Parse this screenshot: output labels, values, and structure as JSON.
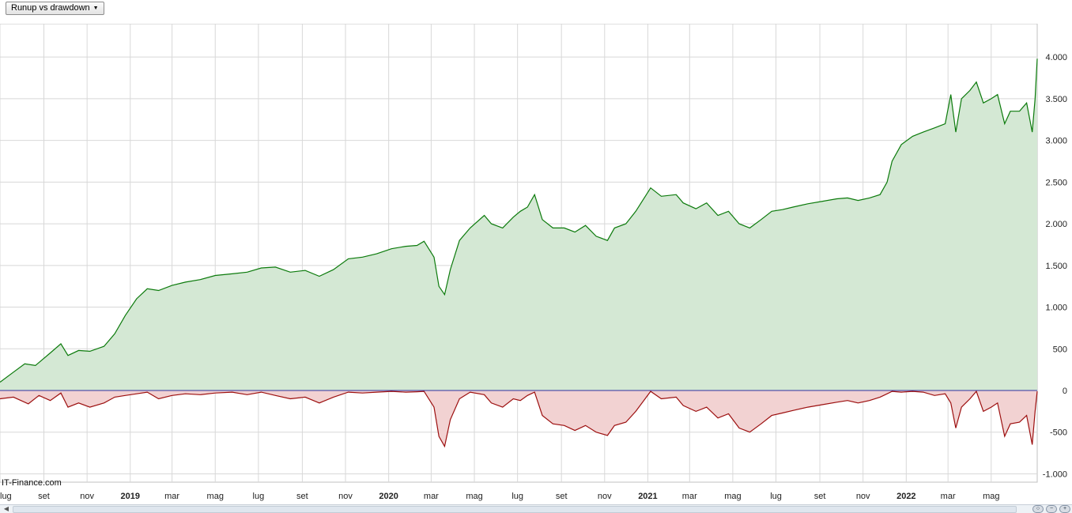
{
  "selector": {
    "label": "Runup vs drawdown",
    "caret": "▼"
  },
  "watermark": "IT-Finance.com",
  "colors": {
    "runup_line": "#0b7a0b",
    "runup_fill": "#d4e8d4",
    "drawdown_line": "#9c0f0f",
    "drawdown_fill": "#f2d2d2",
    "zero_line": "#3030a0",
    "grid": "#d8d8d8"
  },
  "chart_data": {
    "type": "area",
    "title": "",
    "xlabel": "",
    "ylabel": "",
    "x_range": [
      "2018-07-01",
      "2022-07-05"
    ],
    "ylim": [
      -1100,
      4400
    ],
    "y_ticks": [
      {
        "value": 4000,
        "label": "4.000"
      },
      {
        "value": 3500,
        "label": "3.500"
      },
      {
        "value": 3000,
        "label": "3.000"
      },
      {
        "value": 2500,
        "label": "2.500"
      },
      {
        "value": 2000,
        "label": "2.000"
      },
      {
        "value": 1500,
        "label": "1.500"
      },
      {
        "value": 1000,
        "label": "1.000"
      },
      {
        "value": 500,
        "label": "500"
      },
      {
        "value": 0,
        "label": "0"
      },
      {
        "value": -500,
        "label": "-500"
      },
      {
        "value": -1000,
        "label": "-1.000"
      }
    ],
    "x_ticks": [
      {
        "date": "2018-07-01",
        "label": "lug",
        "major": false
      },
      {
        "date": "2018-09-01",
        "label": "set",
        "major": false
      },
      {
        "date": "2018-11-01",
        "label": "nov",
        "major": false
      },
      {
        "date": "2019-01-01",
        "label": "2019",
        "major": true
      },
      {
        "date": "2019-03-01",
        "label": "mar",
        "major": false
      },
      {
        "date": "2019-05-01",
        "label": "mag",
        "major": false
      },
      {
        "date": "2019-07-01",
        "label": "lug",
        "major": false
      },
      {
        "date": "2019-09-01",
        "label": "set",
        "major": false
      },
      {
        "date": "2019-11-01",
        "label": "nov",
        "major": false
      },
      {
        "date": "2020-01-01",
        "label": "2020",
        "major": true
      },
      {
        "date": "2020-03-01",
        "label": "mar",
        "major": false
      },
      {
        "date": "2020-05-01",
        "label": "mag",
        "major": false
      },
      {
        "date": "2020-07-01",
        "label": "lug",
        "major": false
      },
      {
        "date": "2020-09-01",
        "label": "set",
        "major": false
      },
      {
        "date": "2020-11-01",
        "label": "nov",
        "major": false
      },
      {
        "date": "2021-01-01",
        "label": "2021",
        "major": true
      },
      {
        "date": "2021-03-01",
        "label": "mar",
        "major": false
      },
      {
        "date": "2021-05-01",
        "label": "mag",
        "major": false
      },
      {
        "date": "2021-07-01",
        "label": "lug",
        "major": false
      },
      {
        "date": "2021-09-01",
        "label": "set",
        "major": false
      },
      {
        "date": "2021-11-01",
        "label": "nov",
        "major": false
      },
      {
        "date": "2022-01-01",
        "label": "2022",
        "major": true
      },
      {
        "date": "2022-03-01",
        "label": "mar",
        "major": false
      },
      {
        "date": "2022-05-01",
        "label": "mag",
        "major": false
      }
    ],
    "series": [
      {
        "key": "runup",
        "points": [
          [
            "2018-07-01",
            100
          ],
          [
            "2018-07-20",
            220
          ],
          [
            "2018-08-05",
            320
          ],
          [
            "2018-08-20",
            300
          ],
          [
            "2018-09-10",
            450
          ],
          [
            "2018-09-25",
            560
          ],
          [
            "2018-10-05",
            420
          ],
          [
            "2018-10-20",
            480
          ],
          [
            "2018-11-05",
            470
          ],
          [
            "2018-11-25",
            530
          ],
          [
            "2018-12-10",
            680
          ],
          [
            "2018-12-25",
            900
          ],
          [
            "2019-01-10",
            1100
          ],
          [
            "2019-01-25",
            1220
          ],
          [
            "2019-02-10",
            1200
          ],
          [
            "2019-03-01",
            1260
          ],
          [
            "2019-03-20",
            1300
          ],
          [
            "2019-04-10",
            1330
          ],
          [
            "2019-05-01",
            1380
          ],
          [
            "2019-05-25",
            1400
          ],
          [
            "2019-06-15",
            1420
          ],
          [
            "2019-07-05",
            1470
          ],
          [
            "2019-07-25",
            1480
          ],
          [
            "2019-08-15",
            1420
          ],
          [
            "2019-09-05",
            1440
          ],
          [
            "2019-09-25",
            1370
          ],
          [
            "2019-10-15",
            1450
          ],
          [
            "2019-11-05",
            1580
          ],
          [
            "2019-11-25",
            1600
          ],
          [
            "2019-12-15",
            1640
          ],
          [
            "2020-01-05",
            1700
          ],
          [
            "2020-01-25",
            1730
          ],
          [
            "2020-02-10",
            1740
          ],
          [
            "2020-02-20",
            1790
          ],
          [
            "2020-03-05",
            1600
          ],
          [
            "2020-03-12",
            1250
          ],
          [
            "2020-03-20",
            1150
          ],
          [
            "2020-03-28",
            1450
          ],
          [
            "2020-04-10",
            1800
          ],
          [
            "2020-04-25",
            1950
          ],
          [
            "2020-05-15",
            2100
          ],
          [
            "2020-05-25",
            2000
          ],
          [
            "2020-06-10",
            1950
          ],
          [
            "2020-06-25",
            2080
          ],
          [
            "2020-07-05",
            2150
          ],
          [
            "2020-07-15",
            2200
          ],
          [
            "2020-07-25",
            2350
          ],
          [
            "2020-08-05",
            2050
          ],
          [
            "2020-08-20",
            1950
          ],
          [
            "2020-09-05",
            1950
          ],
          [
            "2020-09-20",
            1900
          ],
          [
            "2020-10-05",
            1980
          ],
          [
            "2020-10-20",
            1850
          ],
          [
            "2020-11-05",
            1800
          ],
          [
            "2020-11-15",
            1950
          ],
          [
            "2020-12-01",
            2000
          ],
          [
            "2020-12-15",
            2150
          ],
          [
            "2021-01-05",
            2430
          ],
          [
            "2021-01-20",
            2330
          ],
          [
            "2021-02-10",
            2350
          ],
          [
            "2021-02-20",
            2250
          ],
          [
            "2021-03-10",
            2180
          ],
          [
            "2021-03-25",
            2250
          ],
          [
            "2021-04-10",
            2100
          ],
          [
            "2021-04-25",
            2150
          ],
          [
            "2021-05-10",
            2000
          ],
          [
            "2021-05-25",
            1950
          ],
          [
            "2021-06-10",
            2050
          ],
          [
            "2021-06-25",
            2150
          ],
          [
            "2021-07-10",
            2170
          ],
          [
            "2021-07-25",
            2200
          ],
          [
            "2021-08-15",
            2240
          ],
          [
            "2021-09-05",
            2270
          ],
          [
            "2021-09-25",
            2300
          ],
          [
            "2021-10-10",
            2310
          ],
          [
            "2021-10-25",
            2280
          ],
          [
            "2021-11-10",
            2310
          ],
          [
            "2021-11-25",
            2350
          ],
          [
            "2021-12-05",
            2500
          ],
          [
            "2021-12-12",
            2750
          ],
          [
            "2021-12-25",
            2950
          ],
          [
            "2022-01-10",
            3050
          ],
          [
            "2022-01-25",
            3100
          ],
          [
            "2022-02-10",
            3150
          ],
          [
            "2022-02-25",
            3200
          ],
          [
            "2022-03-05",
            3550
          ],
          [
            "2022-03-12",
            3100
          ],
          [
            "2022-03-20",
            3500
          ],
          [
            "2022-04-01",
            3600
          ],
          [
            "2022-04-10",
            3700
          ],
          [
            "2022-04-20",
            3450
          ],
          [
            "2022-05-01",
            3500
          ],
          [
            "2022-05-10",
            3550
          ],
          [
            "2022-05-20",
            3200
          ],
          [
            "2022-05-28",
            3350
          ],
          [
            "2022-06-10",
            3350
          ],
          [
            "2022-06-20",
            3450
          ],
          [
            "2022-06-28",
            3100
          ],
          [
            "2022-07-02",
            3500
          ],
          [
            "2022-07-05",
            3980
          ]
        ]
      },
      {
        "key": "drawdown",
        "points": [
          [
            "2018-07-01",
            -100
          ],
          [
            "2018-07-20",
            -80
          ],
          [
            "2018-08-10",
            -160
          ],
          [
            "2018-08-25",
            -60
          ],
          [
            "2018-09-10",
            -120
          ],
          [
            "2018-09-25",
            -30
          ],
          [
            "2018-10-05",
            -200
          ],
          [
            "2018-10-20",
            -150
          ],
          [
            "2018-11-05",
            -200
          ],
          [
            "2018-11-25",
            -150
          ],
          [
            "2018-12-10",
            -80
          ],
          [
            "2018-12-25",
            -60
          ],
          [
            "2019-01-10",
            -40
          ],
          [
            "2019-01-25",
            -20
          ],
          [
            "2019-02-10",
            -100
          ],
          [
            "2019-03-01",
            -60
          ],
          [
            "2019-03-20",
            -40
          ],
          [
            "2019-04-10",
            -50
          ],
          [
            "2019-05-01",
            -30
          ],
          [
            "2019-05-25",
            -20
          ],
          [
            "2019-06-15",
            -50
          ],
          [
            "2019-07-05",
            -20
          ],
          [
            "2019-07-25",
            -60
          ],
          [
            "2019-08-15",
            -100
          ],
          [
            "2019-09-05",
            -80
          ],
          [
            "2019-09-25",
            -150
          ],
          [
            "2019-10-15",
            -80
          ],
          [
            "2019-11-05",
            -20
          ],
          [
            "2019-11-25",
            -30
          ],
          [
            "2019-12-15",
            -20
          ],
          [
            "2020-01-05",
            -10
          ],
          [
            "2020-01-25",
            -20
          ],
          [
            "2020-02-10",
            -15
          ],
          [
            "2020-02-20",
            -10
          ],
          [
            "2020-03-05",
            -200
          ],
          [
            "2020-03-12",
            -550
          ],
          [
            "2020-03-20",
            -670
          ],
          [
            "2020-03-28",
            -350
          ],
          [
            "2020-04-10",
            -100
          ],
          [
            "2020-04-25",
            -20
          ],
          [
            "2020-05-15",
            -50
          ],
          [
            "2020-05-25",
            -150
          ],
          [
            "2020-06-10",
            -200
          ],
          [
            "2020-06-25",
            -100
          ],
          [
            "2020-07-05",
            -120
          ],
          [
            "2020-07-15",
            -60
          ],
          [
            "2020-07-25",
            -20
          ],
          [
            "2020-08-05",
            -300
          ],
          [
            "2020-08-20",
            -400
          ],
          [
            "2020-09-05",
            -420
          ],
          [
            "2020-09-20",
            -480
          ],
          [
            "2020-10-05",
            -420
          ],
          [
            "2020-10-20",
            -500
          ],
          [
            "2020-11-05",
            -540
          ],
          [
            "2020-11-15",
            -420
          ],
          [
            "2020-12-01",
            -380
          ],
          [
            "2020-12-15",
            -250
          ],
          [
            "2021-01-05",
            -10
          ],
          [
            "2021-01-20",
            -100
          ],
          [
            "2021-02-10",
            -80
          ],
          [
            "2021-02-20",
            -180
          ],
          [
            "2021-03-10",
            -250
          ],
          [
            "2021-03-25",
            -200
          ],
          [
            "2021-04-10",
            -330
          ],
          [
            "2021-04-25",
            -280
          ],
          [
            "2021-05-10",
            -450
          ],
          [
            "2021-05-25",
            -500
          ],
          [
            "2021-06-10",
            -400
          ],
          [
            "2021-06-25",
            -300
          ],
          [
            "2021-07-10",
            -270
          ],
          [
            "2021-07-25",
            -240
          ],
          [
            "2021-08-15",
            -200
          ],
          [
            "2021-09-05",
            -170
          ],
          [
            "2021-09-25",
            -140
          ],
          [
            "2021-10-10",
            -120
          ],
          [
            "2021-10-25",
            -150
          ],
          [
            "2021-11-10",
            -120
          ],
          [
            "2021-11-25",
            -80
          ],
          [
            "2021-12-05",
            -40
          ],
          [
            "2021-12-12",
            -10
          ],
          [
            "2021-12-25",
            -20
          ],
          [
            "2022-01-10",
            -10
          ],
          [
            "2022-01-25",
            -20
          ],
          [
            "2022-02-10",
            -60
          ],
          [
            "2022-02-25",
            -40
          ],
          [
            "2022-03-05",
            -150
          ],
          [
            "2022-03-12",
            -450
          ],
          [
            "2022-03-20",
            -200
          ],
          [
            "2022-04-01",
            -100
          ],
          [
            "2022-04-10",
            -10
          ],
          [
            "2022-04-20",
            -250
          ],
          [
            "2022-05-01",
            -200
          ],
          [
            "2022-05-10",
            -150
          ],
          [
            "2022-05-20",
            -550
          ],
          [
            "2022-05-28",
            -400
          ],
          [
            "2022-06-10",
            -380
          ],
          [
            "2022-06-20",
            -300
          ],
          [
            "2022-06-28",
            -650
          ],
          [
            "2022-07-02",
            -250
          ],
          [
            "2022-07-05",
            -10
          ]
        ]
      }
    ]
  }
}
